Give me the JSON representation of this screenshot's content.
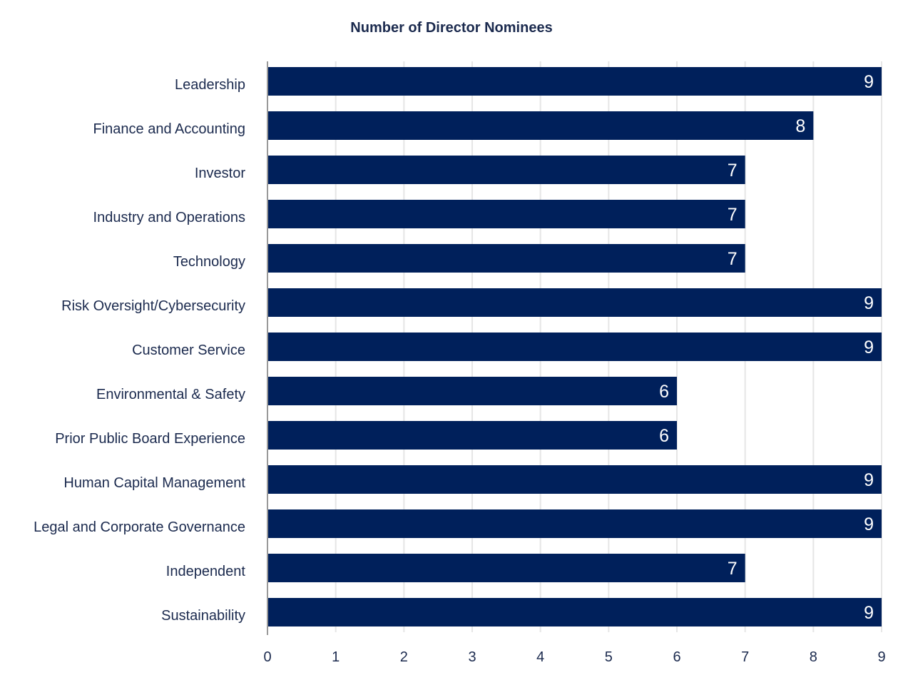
{
  "chart_data": {
    "type": "bar",
    "orientation": "horizontal",
    "title": "Number of Director Nominees",
    "xlabel": "",
    "ylabel": "",
    "categories": [
      "Leadership",
      "Finance and Accounting",
      "Investor",
      "Industry and Operations",
      "Technology",
      "Risk Oversight/Cybersecurity",
      "Customer Service",
      "Environmental & Safety",
      "Prior Public Board Experience",
      "Human Capital Management",
      "Legal and Corporate Governance",
      "Independent",
      "Sustainability"
    ],
    "values": [
      9,
      8,
      7,
      7,
      7,
      9,
      9,
      6,
      6,
      9,
      9,
      7,
      9
    ],
    "xlim": [
      0,
      9
    ],
    "xticks": [
      "0",
      "1",
      "2",
      "3",
      "4",
      "5",
      "6",
      "7",
      "8",
      "9"
    ],
    "grid": "vertical",
    "legend": "none",
    "data_labels": true,
    "colors": {
      "bar": "#00205b",
      "text": "#1b2a4e",
      "grid": "#e6e6e6",
      "axis": "#999999",
      "value_label": "#ffffff"
    }
  }
}
